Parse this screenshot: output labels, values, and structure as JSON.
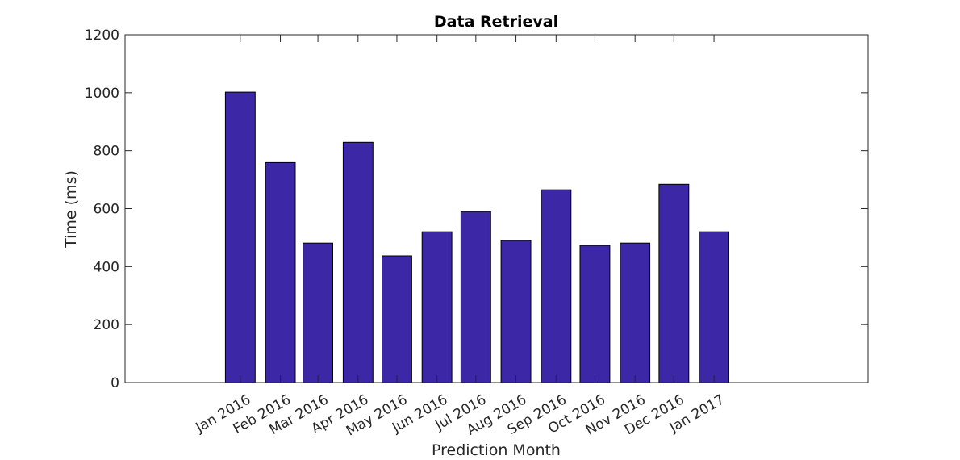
{
  "chart_data": {
    "type": "bar",
    "title": "Data Retrieval",
    "xlabel": "Prediction Month",
    "ylabel": "Time (ms)",
    "categories": [
      "Jan 2016",
      "Feb 2016",
      "Mar 2016",
      "Apr 2016",
      "May 2016",
      "Jun 2016",
      "Jul 2016",
      "Aug 2016",
      "Sep 2016",
      "Oct 2016",
      "Nov 2016",
      "Dec 2016",
      "Jan 2017"
    ],
    "x_dates": [
      "2016-01-01",
      "2016-02-01",
      "2016-03-01",
      "2016-04-01",
      "2016-05-01",
      "2016-06-01",
      "2016-07-01",
      "2016-08-01",
      "2016-09-01",
      "2016-10-01",
      "2016-11-01",
      "2016-12-01",
      "2017-01-01"
    ],
    "xlim": [
      "2015-10-04",
      "2017-04-30"
    ],
    "values": [
      1002,
      759,
      481,
      829,
      437,
      520,
      590,
      490,
      665,
      473,
      481,
      684,
      520
    ],
    "ylim": [
      0,
      1200
    ],
    "yticks": [
      0,
      200,
      400,
      600,
      800,
      1000,
      1200
    ],
    "bar_color": "#3c28a7",
    "grid": false,
    "legend": "none"
  }
}
